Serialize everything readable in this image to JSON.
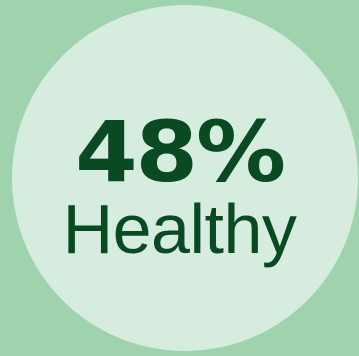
{
  "stat": {
    "value": "48%",
    "label": "Healthy"
  },
  "colors": {
    "background": "#9fd3ad",
    "circle": "#d6ecdf",
    "text": "#0a4a22"
  }
}
